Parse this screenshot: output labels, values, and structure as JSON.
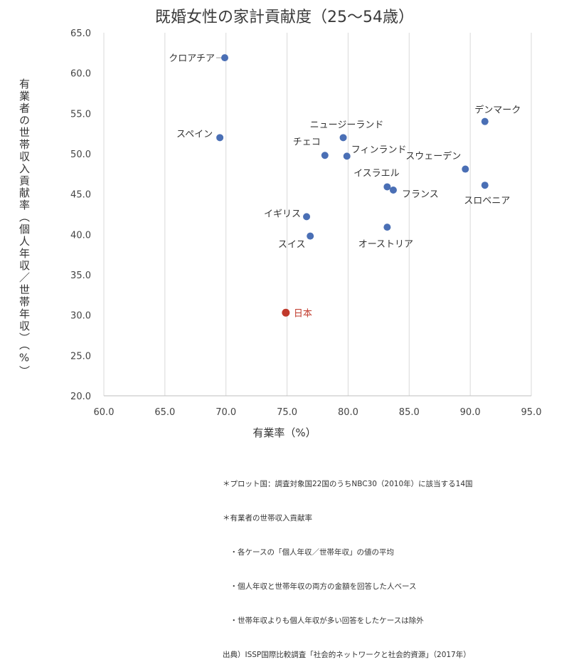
{
  "chart_data": {
    "type": "scatter",
    "title": "既婚女性の家計貢献度（25～54歳）",
    "xlabel": "有業率（%）",
    "ylabel": "有業者の世帯収入貢献率（個人年収／世帯年収）（%）",
    "xlim": [
      60,
      95
    ],
    "ylim": [
      20,
      65
    ],
    "xticks": [
      "60.0",
      "65.0",
      "70.0",
      "75.0",
      "80.0",
      "85.0",
      "90.0",
      "95.0"
    ],
    "yticks": [
      "20.0",
      "25.0",
      "30.0",
      "35.0",
      "40.0",
      "45.0",
      "50.0",
      "55.0",
      "60.0",
      "65.0"
    ],
    "grid": "vertical",
    "colors": {
      "point": "#4a6fb5",
      "highlight": "#c0392b"
    },
    "points": [
      {
        "label": "クロアチア",
        "x": 69.9,
        "y": 61.9
      },
      {
        "label": "スペイン",
        "x": 69.5,
        "y": 52.0
      },
      {
        "label": "チェコ",
        "x": 78.1,
        "y": 49.8
      },
      {
        "label": "ニュージーランド",
        "x": 79.6,
        "y": 52.0
      },
      {
        "label": "フィンランド",
        "x": 79.9,
        "y": 49.7
      },
      {
        "label": "デンマーク",
        "x": 91.2,
        "y": 54.0
      },
      {
        "label": "スウェーデン",
        "x": 89.6,
        "y": 48.1
      },
      {
        "label": "イスラエル",
        "x": 83.2,
        "y": 45.9
      },
      {
        "label": "フランス",
        "x": 83.7,
        "y": 45.5
      },
      {
        "label": "スロベニア",
        "x": 91.2,
        "y": 46.1
      },
      {
        "label": "イギリス",
        "x": 76.6,
        "y": 42.2
      },
      {
        "label": "スイス",
        "x": 76.9,
        "y": 39.8
      },
      {
        "label": "オーストリア",
        "x": 83.2,
        "y": 40.9
      },
      {
        "label": "日本",
        "x": 74.9,
        "y": 30.3,
        "highlight": true
      }
    ]
  },
  "notes": [
    "＊プロット国：調査対象国22国のうちNBC30（2010年）に該当する14国",
    "＊有業者の世帯収入貢献率",
    "　・各ケースの「個人年収／世帯年収」の値の平均",
    "　・個人年収と世帯年収の両方の金額を回答した人ベース",
    "　・世帯年収よりも個人年収が多い回答をしたケースは除外",
    "出典）ISSP国際比較調査「社会的ネットワークと社会的資源」（2017年）"
  ]
}
